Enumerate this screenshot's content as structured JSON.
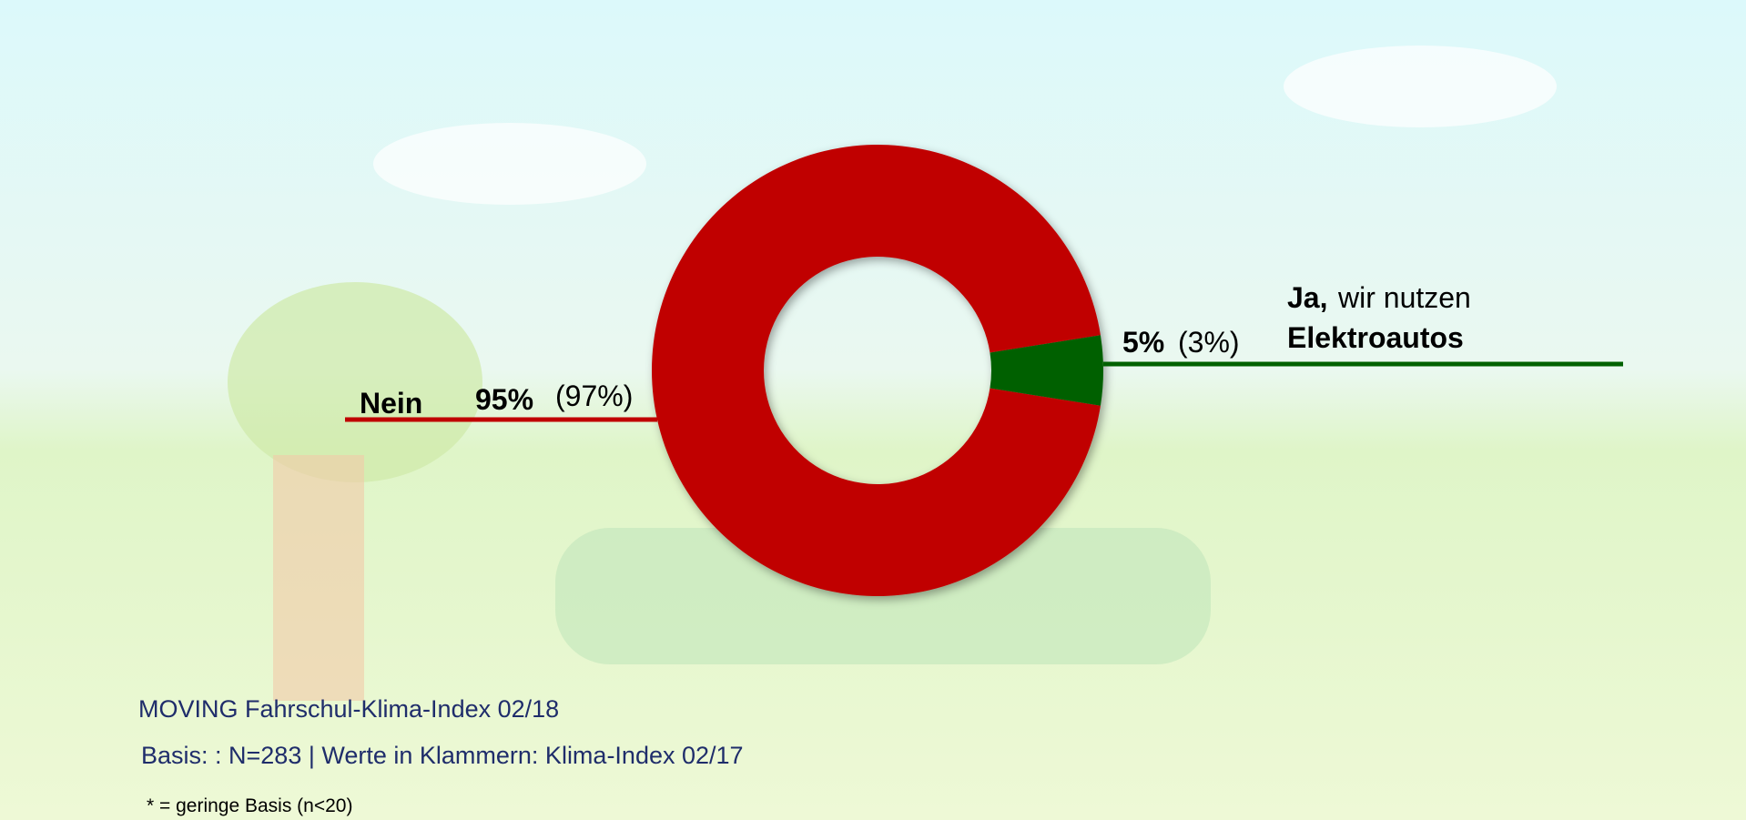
{
  "chart_data": {
    "type": "donut",
    "categories": [
      "Nein",
      "Ja,"
    ],
    "values": [
      95,
      5
    ],
    "value_labels": [
      "95%",
      "5%"
    ],
    "previous_values": [
      97,
      3
    ],
    "previous_value_labels": [
      "(97%)",
      "(3%)"
    ],
    "colors": [
      "#c00000",
      "#006100"
    ],
    "annotations": [
      "wir nutzen",
      "Elektroautos"
    ],
    "footer": [
      "MOVING Fahrschul-Klima-Index 02/18",
      "Basis: : N=283 | Werte in Klammern: Klima-Index 02/17",
      "* = geringe Basis (n<20)"
    ]
  }
}
